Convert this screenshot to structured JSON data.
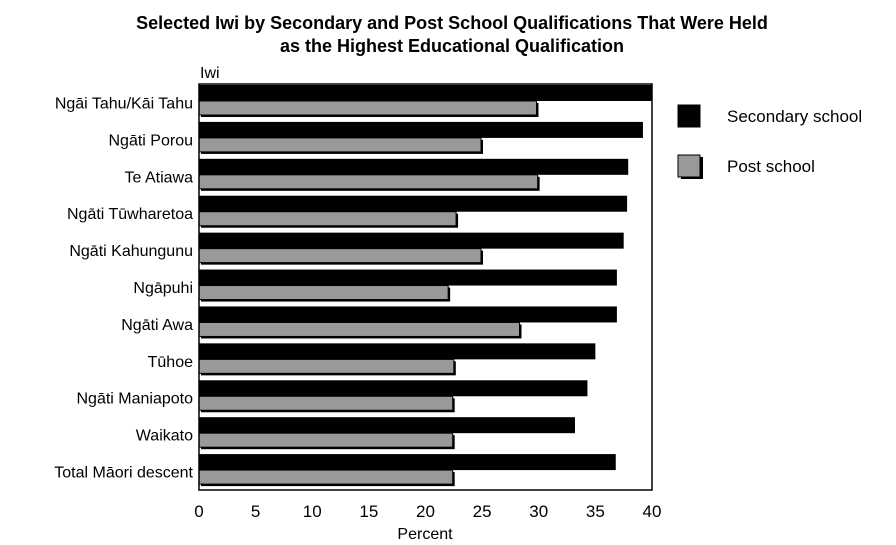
{
  "chart_data": {
    "type": "bar",
    "orientation": "horizontal",
    "title_line1": "Selected Iwi by Secondary and Post School Qualifications  That Were Held",
    "title_line2": "as the Highest Educational Qualification",
    "ylabel": "Iwi",
    "xlabel": "Percent",
    "xlim": [
      0,
      40
    ],
    "xticks": [
      "0",
      "5",
      "10",
      "15",
      "20",
      "25",
      "30",
      "35",
      "40"
    ],
    "categories": [
      "Ngāi Tahu/Kāi Tahu",
      "Ngāti Porou",
      "Te Atiawa",
      "Ngāti Tūwharetoa",
      "Ngāti Kahungunu",
      "Ngāpuhi",
      "Ngāti Awa",
      "Tūhoe",
      "Ngāti Maniapoto",
      "Waikato",
      "Total Māori descent"
    ],
    "series": [
      {
        "name": "Secondary school",
        "color": "#000000",
        "values": [
          40.2,
          39.2,
          37.9,
          37.8,
          37.5,
          36.9,
          36.9,
          35.0,
          34.3,
          33.2,
          36.8
        ]
      },
      {
        "name": "Post school",
        "color": "#999999",
        "values": [
          29.8,
          24.9,
          29.9,
          22.7,
          24.9,
          22.0,
          28.3,
          22.5,
          22.4,
          22.4,
          22.4
        ]
      }
    ],
    "legend_position": "right",
    "grid": false
  }
}
